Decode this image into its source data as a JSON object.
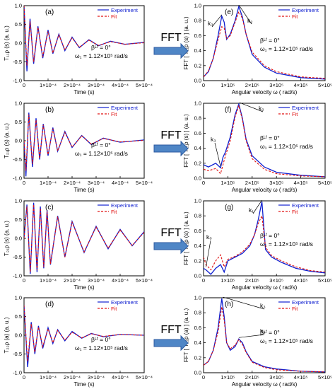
{
  "figure": {
    "arrow_label": "FFT"
  },
  "colors": {
    "experiment": "#1020d0",
    "fit": "#e01010",
    "arrow_fill": "#4f86c6",
    "arrow_stroke": "#2c5aa0"
  },
  "chart_data": [
    {
      "type": "line",
      "panel_label": "(a)",
      "xlabel": "Time (s)",
      "ylabel": "T₁₁ρ (s)  (a. u.)",
      "xlim": [
        0,
        0.0005
      ],
      "ylim": [
        -1.0,
        1.0
      ],
      "xticks": [
        "0",
        "1×10⁻⁴",
        "2×10⁻⁴",
        "3×10⁻⁴",
        "4×10⁻⁴",
        "5×10⁻⁴"
      ],
      "yticks": [
        "-1.0",
        "-0.5",
        "0.0",
        "0.5",
        "1.0"
      ],
      "legend": [
        "Experiment",
        "Fit"
      ],
      "annotations": [
        "βᴸᶠ = 0°",
        "ω₁ = 1.12×10⁵ rad/s"
      ],
      "series": [
        {
          "name": "Experiment",
          "x": [
            0.0,
            1.2e-05,
            2.5e-05,
            4e-05,
            5.8e-05,
            7.8e-05,
            0.0001,
            0.00012,
            0.000145,
            0.00017,
            0.0002,
            0.00023,
            0.00027,
            0.00031,
            0.00036,
            0.00042,
            0.0005
          ],
          "y": [
            1.0,
            -0.75,
            0.65,
            -0.55,
            0.45,
            -0.4,
            0.35,
            -0.28,
            0.24,
            -0.2,
            0.16,
            -0.12,
            0.09,
            -0.07,
            0.05,
            -0.03,
            0.02
          ]
        },
        {
          "name": "Fit",
          "x": [
            0.0,
            1.2e-05,
            2.5e-05,
            4e-05,
            5.8e-05,
            7.8e-05,
            0.0001,
            0.00012,
            0.000145,
            0.00017,
            0.0002,
            0.00023,
            0.00027,
            0.00031,
            0.00036,
            0.00042,
            0.0005
          ],
          "y": [
            1.0,
            -0.6,
            0.58,
            -0.5,
            0.42,
            -0.36,
            0.31,
            -0.26,
            0.22,
            -0.18,
            0.14,
            -0.11,
            0.08,
            -0.06,
            0.04,
            -0.03,
            0.01
          ]
        }
      ]
    },
    {
      "type": "line",
      "panel_label": "(e)",
      "xlabel": "Angular velocity  ω  ( rad/s)",
      "ylabel": "FFT [ T₁₁ρ (s) ]  (a. u.)",
      "xlim": [
        0,
        500000
      ],
      "ylim": [
        0.0,
        1.0
      ],
      "xticks": [
        "0",
        "1×10⁵",
        "2×10⁵",
        "3×10⁵",
        "4×10⁵",
        "5×10⁵"
      ],
      "yticks": [
        "0.0",
        "0.2",
        "0.4",
        "0.6",
        "0.8",
        "1.0"
      ],
      "legend": [
        "Experiment",
        "Fit"
      ],
      "annotations": [
        "k₃",
        "k₂",
        "βᴸᶠ = 0°",
        "ω₁ = 1.12×10⁵ rad/s"
      ],
      "series": [
        {
          "name": "Experiment",
          "x": [
            0,
            20000,
            40000,
            60000,
            75000,
            85000,
            95000,
            110000,
            130000,
            145000,
            160000,
            175000,
            200000,
            250000,
            300000,
            400000,
            500000
          ],
          "y": [
            0.05,
            0.12,
            0.3,
            0.6,
            0.86,
            0.78,
            0.55,
            0.62,
            0.8,
            0.99,
            0.85,
            0.62,
            0.35,
            0.18,
            0.1,
            0.04,
            0.02
          ]
        },
        {
          "name": "Fit",
          "x": [
            0,
            20000,
            40000,
            60000,
            75000,
            85000,
            95000,
            110000,
            130000,
            145000,
            160000,
            175000,
            200000,
            250000,
            300000,
            400000,
            500000
          ],
          "y": [
            0.05,
            0.13,
            0.3,
            0.55,
            0.72,
            0.7,
            0.56,
            0.6,
            0.78,
            0.92,
            0.83,
            0.62,
            0.38,
            0.2,
            0.12,
            0.05,
            0.03
          ]
        }
      ]
    },
    {
      "type": "line",
      "panel_label": "(b)",
      "xlabel": "Time (s)",
      "ylabel": "T₂₁ρ (s)  (a. u.)",
      "xlim": [
        0,
        0.0005
      ],
      "ylim": [
        -1.0,
        1.0
      ],
      "xticks": [
        "0",
        "1×10⁻⁴",
        "2×10⁻⁴",
        "3×10⁻⁴",
        "4×10⁻⁴",
        "5×10⁻⁴"
      ],
      "yticks": [
        "-1.0",
        "-0.5",
        "0.0",
        "0.5",
        "1.0"
      ],
      "legend": [
        "Experiment",
        "Fit"
      ],
      "annotations": [
        "βᴸᶠ = 0°",
        "ω₁ = 1.12×10⁵ rad/s"
      ],
      "series": [
        {
          "name": "Experiment",
          "x": [
            0.0,
            8e-06,
            2e-05,
            3.5e-05,
            5e-05,
            6.5e-05,
            8e-05,
            0.0001,
            0.00012,
            0.00014,
            0.00017,
            0.0002,
            0.00024,
            0.00028,
            0.00033,
            0.0004,
            0.0005
          ],
          "y": [
            0.0,
            -0.95,
            0.75,
            -0.7,
            0.6,
            -0.5,
            0.45,
            -0.4,
            0.35,
            -0.28,
            0.25,
            -0.18,
            0.14,
            -0.1,
            0.07,
            -0.04,
            0.02
          ]
        },
        {
          "name": "Fit",
          "x": [
            0.0,
            8e-06,
            2e-05,
            3.5e-05,
            5e-05,
            6.5e-05,
            8e-05,
            0.0001,
            0.00012,
            0.00014,
            0.00017,
            0.0002,
            0.00024,
            0.00028,
            0.00033,
            0.0004,
            0.0005
          ],
          "y": [
            0.0,
            -0.8,
            0.7,
            -0.62,
            0.55,
            -0.47,
            0.42,
            -0.37,
            0.32,
            -0.27,
            0.22,
            -0.17,
            0.13,
            -0.09,
            0.06,
            -0.03,
            0.01
          ]
        }
      ]
    },
    {
      "type": "line",
      "panel_label": "(f)",
      "xlabel": "Angular velocity  ω  ( rad/s)",
      "ylabel": "FFT [ T₂₁ρ (s) ]  (a. u.)",
      "xlim": [
        0,
        500000
      ],
      "ylim": [
        0.0,
        1.0
      ],
      "xticks": [
        "0",
        "1×10⁵",
        "2×10⁵",
        "3×10⁵",
        "4×10⁵",
        "5×10⁵"
      ],
      "yticks": [
        "0.0",
        "0.2",
        "0.4",
        "0.6",
        "0.8",
        "1.0"
      ],
      "legend": [
        "Experiment",
        "Fit"
      ],
      "annotations": [
        "k₃",
        "k₂",
        "βᴸᶠ = 0°",
        "ω₁ = 1.12×10⁵ rad/s"
      ],
      "series": [
        {
          "name": "Experiment",
          "x": [
            0,
            20000,
            50000,
            70000,
            80000,
            90000,
            110000,
            130000,
            145000,
            160000,
            175000,
            200000,
            250000,
            300000,
            400000,
            500000
          ],
          "y": [
            0.18,
            0.15,
            0.2,
            0.14,
            0.28,
            0.35,
            0.55,
            0.85,
            0.99,
            0.8,
            0.52,
            0.3,
            0.15,
            0.08,
            0.04,
            0.02
          ]
        },
        {
          "name": "Fit",
          "x": [
            0,
            20000,
            50000,
            70000,
            80000,
            90000,
            110000,
            130000,
            145000,
            160000,
            175000,
            200000,
            250000,
            300000,
            400000,
            500000
          ],
          "y": [
            0.12,
            0.1,
            0.13,
            0.06,
            0.18,
            0.3,
            0.5,
            0.82,
            0.97,
            0.78,
            0.5,
            0.26,
            0.12,
            0.06,
            0.03,
            0.02
          ]
        }
      ]
    },
    {
      "type": "line",
      "panel_label": "(c)",
      "xlabel": "Time (s)",
      "ylabel": "T₂₁ρ (s)  (a. u.)",
      "xlim": [
        0,
        0.0005
      ],
      "ylim": [
        -1.0,
        1.0
      ],
      "xticks": [
        "0",
        "1×10⁻⁴",
        "2×10⁻⁴",
        "3×10⁻⁴",
        "4×10⁻⁴",
        "5×10⁻⁴"
      ],
      "yticks": [
        "-1.0",
        "-0.5",
        "0.0",
        "0.5",
        "1.0"
      ],
      "legend": [
        "Experiment",
        "Fit"
      ],
      "annotations": [],
      "series": [
        {
          "name": "Experiment",
          "x": [
            0.0,
            1.2e-05,
            2.6e-05,
            4e-05,
            5.4e-05,
            6.8e-05,
            8.2e-05,
            9.6e-05,
            0.00011,
            0.00014,
            0.00017,
            0.0002,
            0.00025,
            0.0003,
            0.00035,
            0.0004,
            0.00045,
            0.0005
          ],
          "y": [
            0.0,
            0.9,
            -0.95,
            0.95,
            -0.9,
            0.85,
            -0.8,
            0.75,
            -0.7,
            0.6,
            -0.5,
            0.45,
            -0.38,
            0.32,
            -0.28,
            0.24,
            -0.2,
            0.18
          ]
        },
        {
          "name": "Fit",
          "x": [
            0.0,
            1.2e-05,
            2.6e-05,
            4e-05,
            5.4e-05,
            6.8e-05,
            8.2e-05,
            9.6e-05,
            0.00011,
            0.00014,
            0.00017,
            0.0002,
            0.00025,
            0.0003,
            0.00035,
            0.0004,
            0.00045,
            0.0005
          ],
          "y": [
            0.0,
            0.85,
            -0.9,
            0.9,
            -0.85,
            0.8,
            -0.76,
            0.72,
            -0.68,
            0.58,
            -0.5,
            0.43,
            -0.36,
            0.3,
            -0.26,
            0.22,
            -0.19,
            0.16
          ]
        }
      ]
    },
    {
      "type": "line",
      "panel_label": "(g)",
      "xlabel": "Angular velocity  ω  ( rad/s)",
      "ylabel": "FFT [ T₂₁ρ (s) ]  (a. u.)",
      "xlim": [
        0,
        500000
      ],
      "ylim": [
        0.0,
        1.0
      ],
      "xticks": [
        "0",
        "1×10⁵",
        "2×10⁵",
        "3×10⁵",
        "4×10⁵",
        "5×10⁵"
      ],
      "yticks": [
        "0.0",
        "0.2",
        "0.4",
        "0.6",
        "0.8",
        "1.0"
      ],
      "legend": [
        "Experiment",
        "Fit"
      ],
      "annotations": [
        "k₀",
        "k₁",
        "βᴸᶠ = 0°",
        "ω₁ = 1.12×10⁵ rad/s"
      ],
      "series": [
        {
          "name": "Experiment",
          "x": [
            0,
            10000,
            30000,
            50000,
            70000,
            85000,
            100000,
            130000,
            160000,
            190000,
            210000,
            225000,
            240000,
            255000,
            280000,
            320000,
            380000,
            440000,
            500000
          ],
          "y": [
            0.1,
            0.08,
            0.02,
            0.1,
            0.15,
            0.05,
            0.2,
            0.25,
            0.3,
            0.4,
            0.55,
            0.75,
            0.99,
            0.35,
            0.25,
            0.18,
            0.1,
            0.06,
            0.04
          ]
        },
        {
          "name": "Fit",
          "x": [
            0,
            10000,
            30000,
            50000,
            70000,
            85000,
            100000,
            130000,
            160000,
            190000,
            210000,
            225000,
            240000,
            255000,
            280000,
            320000,
            380000,
            440000,
            500000
          ],
          "y": [
            0.25,
            0.15,
            0.08,
            0.2,
            0.28,
            0.12,
            0.22,
            0.26,
            0.32,
            0.42,
            0.55,
            0.7,
            0.8,
            0.38,
            0.27,
            0.2,
            0.12,
            0.07,
            0.05
          ]
        }
      ]
    },
    {
      "type": "line",
      "panel_label": "(d)",
      "xlabel": "Time (s)",
      "ylabel": "T₂₂ρ (a)  (a. u.)",
      "xlim": [
        0,
        0.0005
      ],
      "ylim": [
        -1.0,
        1.0
      ],
      "xticks": [
        "0",
        "1×10⁻⁴",
        "2×10⁻⁴",
        "3×10⁻⁴",
        "4×10⁻⁴",
        "5×10⁻⁴"
      ],
      "yticks": [
        "-1.0",
        "-0.5",
        "0.0",
        "0.5",
        "1.0"
      ],
      "legend": [
        "Experiment",
        "Fit"
      ],
      "annotations": [
        "βᴸᶠ = 0°",
        "ω₁ = 1.12×10⁵ rad/s"
      ],
      "series": [
        {
          "name": "Experiment",
          "x": [
            0.0,
            1.5e-05,
            3e-05,
            4.5e-05,
            6e-05,
            7.8e-05,
            0.0001,
            0.00012,
            0.00014,
            0.00017,
            0.0002,
            0.00024,
            0.00028,
            0.00033,
            0.0004,
            0.0005
          ],
          "y": [
            0.8,
            -0.85,
            0.35,
            -0.5,
            0.25,
            -0.35,
            0.2,
            -0.22,
            0.15,
            -0.15,
            0.1,
            -0.08,
            0.05,
            -0.04,
            0.02,
            0.0
          ]
        },
        {
          "name": "Fit",
          "x": [
            0.0,
            1.5e-05,
            3e-05,
            4.5e-05,
            6e-05,
            7.8e-05,
            0.0001,
            0.00012,
            0.00014,
            0.00017,
            0.0002,
            0.00024,
            0.00028,
            0.00033,
            0.0004,
            0.0005
          ],
          "y": [
            0.8,
            -0.7,
            0.3,
            -0.45,
            0.22,
            -0.3,
            0.17,
            -0.2,
            0.13,
            -0.13,
            0.08,
            -0.07,
            0.04,
            -0.03,
            0.02,
            0.0
          ]
        }
      ]
    },
    {
      "type": "line",
      "panel_label": "(h)",
      "xlabel": "Angular velocity  ω  ( rad/s)",
      "ylabel": "FFT [ T₂₂ρ (a) ]  (a. u.)",
      "xlim": [
        0,
        500000
      ],
      "ylim": [
        0.0,
        1.0
      ],
      "xticks": [
        "0",
        "1×10⁵",
        "2×10⁵",
        "3×10⁵",
        "4×10⁵",
        "5×10⁵"
      ],
      "yticks": [
        "0.0",
        "0.2",
        "0.4",
        "0.6",
        "0.8",
        "1.0"
      ],
      "legend": [
        "Experiment",
        "Fit"
      ],
      "annotations": [
        "k₃",
        "k₂",
        "βᴸᶠ = 0°",
        "ω₁ = 1.12×10⁵ rad/s"
      ],
      "series": [
        {
          "name": "Experiment",
          "x": [
            0,
            20000,
            40000,
            60000,
            75000,
            85000,
            95000,
            110000,
            130000,
            145000,
            160000,
            175000,
            200000,
            250000,
            300000,
            400000,
            500000
          ],
          "y": [
            0.1,
            0.15,
            0.3,
            0.6,
            0.99,
            0.75,
            0.4,
            0.3,
            0.35,
            0.45,
            0.4,
            0.28,
            0.15,
            0.08,
            0.05,
            0.02,
            0.01
          ]
        },
        {
          "name": "Fit",
          "x": [
            0,
            20000,
            40000,
            60000,
            75000,
            85000,
            95000,
            110000,
            130000,
            145000,
            160000,
            175000,
            200000,
            250000,
            300000,
            400000,
            500000
          ],
          "y": [
            0.1,
            0.15,
            0.3,
            0.55,
            0.88,
            0.7,
            0.4,
            0.32,
            0.37,
            0.44,
            0.38,
            0.27,
            0.14,
            0.07,
            0.04,
            0.02,
            0.01
          ]
        }
      ]
    }
  ]
}
